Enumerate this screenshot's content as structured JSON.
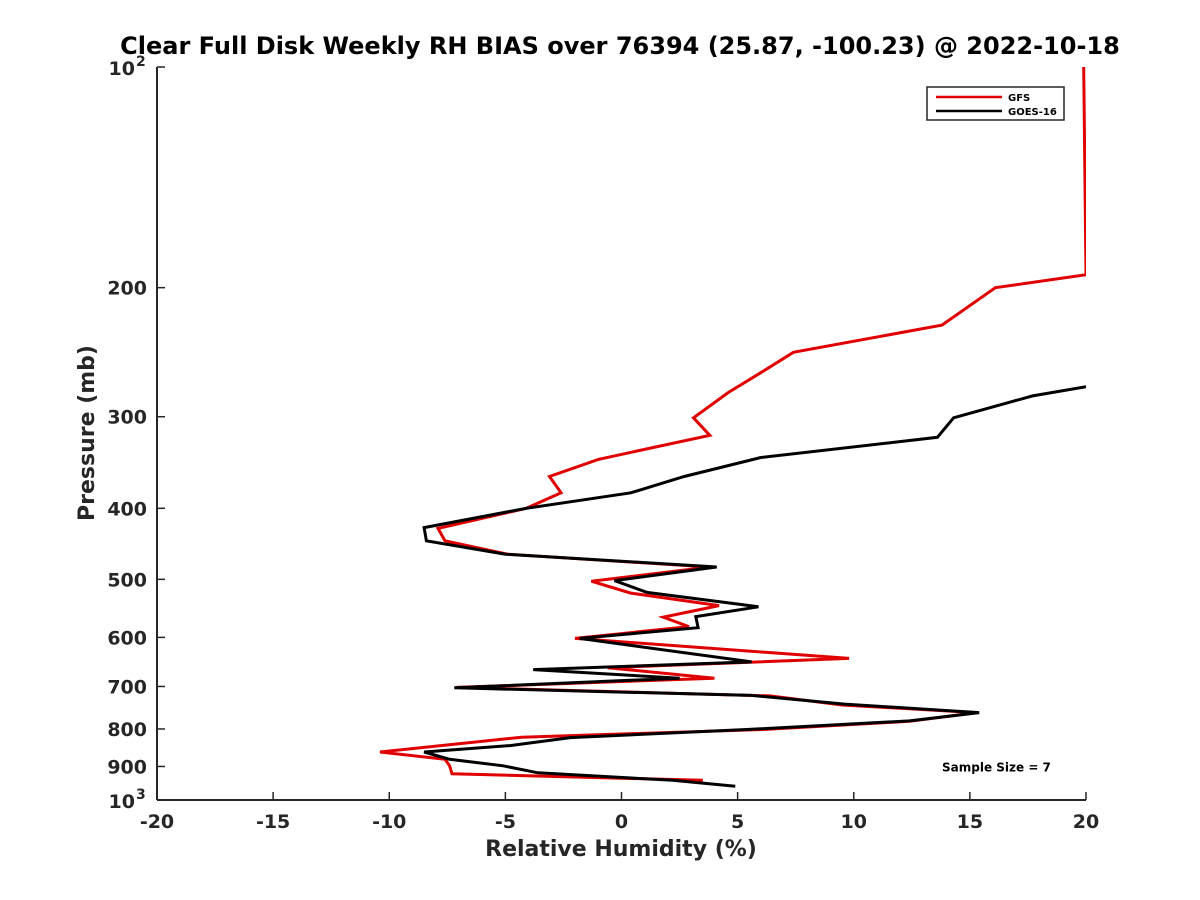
{
  "chart_data": {
    "type": "line",
    "title": "Clear Full Disk Weekly RH BIAS over 76394 (25.87, -100.23) @ 2022-10-18",
    "xlabel": "Relative Humidity (%)",
    "ylabel": "Pressure (mb)",
    "xlim": [
      -20,
      20
    ],
    "ylim": [
      100,
      1000
    ],
    "y_scale": "log",
    "y_reversed": true,
    "grid": false,
    "legend_position": "top-right",
    "x_ticks": [
      {
        "value": -20,
        "label": "-20"
      },
      {
        "value": -15,
        "label": "-15"
      },
      {
        "value": -10,
        "label": "-10"
      },
      {
        "value": -5,
        "label": "-5"
      },
      {
        "value": 0,
        "label": "0"
      },
      {
        "value": 5,
        "label": "5"
      },
      {
        "value": 10,
        "label": "10"
      },
      {
        "value": 15,
        "label": "15"
      },
      {
        "value": 20,
        "label": "20"
      }
    ],
    "y_ticks": [
      {
        "value": 100,
        "label": "10",
        "sup": "2"
      },
      {
        "value": 200,
        "label": "200",
        "sup": ""
      },
      {
        "value": 300,
        "label": "300",
        "sup": ""
      },
      {
        "value": 400,
        "label": "400",
        "sup": ""
      },
      {
        "value": 500,
        "label": "500",
        "sup": ""
      },
      {
        "value": 600,
        "label": "600",
        "sup": ""
      },
      {
        "value": 700,
        "label": "700",
        "sup": ""
      },
      {
        "value": 800,
        "label": "800",
        "sup": ""
      },
      {
        "value": 900,
        "label": "900",
        "sup": ""
      },
      {
        "value": 1000,
        "label": "10",
        "sup": "3"
      }
    ],
    "series": [
      {
        "name": "GFS",
        "color": "#e00000",
        "points": [
          [
            19.9,
            100
          ],
          [
            20,
            192
          ],
          [
            16.1,
            200
          ],
          [
            13.8,
            225
          ],
          [
            7.4,
            245
          ],
          [
            6.1,
            260
          ],
          [
            4.6,
            278
          ],
          [
            3.1,
            301
          ],
          [
            3.8,
            318
          ],
          [
            -1.0,
            343
          ],
          [
            -3.1,
            362
          ],
          [
            -2.6,
            381
          ],
          [
            -4.1,
            400
          ],
          [
            -7.9,
            426
          ],
          [
            -7.6,
            443
          ],
          [
            -4.9,
            462
          ],
          [
            3.8,
            481
          ],
          [
            -1.3,
            503
          ],
          [
            0.4,
            522
          ],
          [
            4.2,
            543
          ],
          [
            1.8,
            563
          ],
          [
            2.9,
            580
          ],
          [
            -2.0,
            602
          ],
          [
            9.8,
            641
          ],
          [
            -0.6,
            660
          ],
          [
            4.0,
            682
          ],
          [
            -7.1,
            702
          ],
          [
            6.4,
            721
          ],
          [
            9.5,
            742
          ],
          [
            15.3,
            760
          ],
          [
            12.4,
            781
          ],
          [
            6.2,
            801
          ],
          [
            -4.3,
            821
          ],
          [
            -10.4,
            860
          ],
          [
            -7.6,
            880
          ],
          [
            -7.4,
            898
          ],
          [
            -7.3,
            921
          ],
          [
            3.5,
            940
          ]
        ]
      },
      {
        "name": "GOES-16",
        "color": "#000000",
        "points": [
          [
            20,
            273
          ],
          [
            17.7,
            281
          ],
          [
            14.3,
            301
          ],
          [
            13.6,
            320
          ],
          [
            6.0,
            341
          ],
          [
            2.7,
            362
          ],
          [
            0.4,
            381
          ],
          [
            -4.1,
            400
          ],
          [
            -8.5,
            425
          ],
          [
            -8.4,
            443
          ],
          [
            -5.0,
            462
          ],
          [
            4.1,
            481
          ],
          [
            -0.3,
            502
          ],
          [
            1.1,
            521
          ],
          [
            5.9,
            545
          ],
          [
            3.2,
            562
          ],
          [
            3.3,
            582
          ],
          [
            -1.8,
            602
          ],
          [
            5.6,
            648
          ],
          [
            -3.8,
            664
          ],
          [
            2.5,
            682
          ],
          [
            -7.2,
            703
          ],
          [
            5.6,
            720
          ],
          [
            9.6,
            740
          ],
          [
            15.4,
            760
          ],
          [
            12.4,
            780
          ],
          [
            5.5,
            801
          ],
          [
            -2.2,
            822
          ],
          [
            -4.8,
            843
          ],
          [
            -8.5,
            860
          ],
          [
            -7.4,
            880
          ],
          [
            -5.1,
            898
          ],
          [
            -3.6,
            918
          ],
          [
            2.2,
            940
          ],
          [
            4.9,
            958
          ]
        ]
      }
    ],
    "annotations": [
      {
        "text": "Sample Size = 7",
        "x": 13.8,
        "y": 900
      }
    ]
  }
}
